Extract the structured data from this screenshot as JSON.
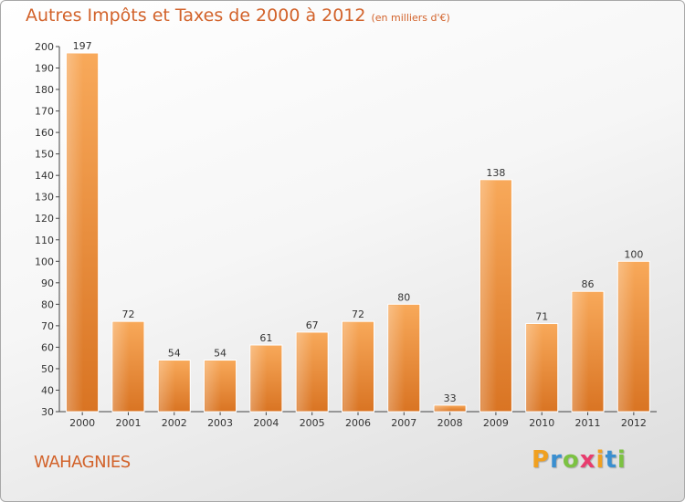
{
  "title": "Autres Impôts et Taxes de 2000 à 2012",
  "unit_note": "(en milliers d'€)",
  "commune": "WAHAGNIES",
  "logo": {
    "letters": [
      "P",
      "r",
      "o",
      "x",
      "i",
      "t",
      "i"
    ],
    "colors": [
      "#f0a020",
      "#3a8fd0",
      "#7cc242",
      "#e83c6e",
      "#f0a020",
      "#3a8fd0",
      "#7cc242"
    ]
  },
  "colors": {
    "accent": "#d2622a",
    "bar_light": "#f8a95a",
    "bar_dark": "#d97423"
  },
  "chart_data": {
    "type": "bar",
    "title": "Autres Impôts et Taxes de 2000 à 2012",
    "categories": [
      "2000",
      "2001",
      "2002",
      "2003",
      "2004",
      "2005",
      "2006",
      "2007",
      "2008",
      "2009",
      "2010",
      "2011",
      "2012"
    ],
    "values": [
      197,
      72,
      54,
      54,
      61,
      67,
      72,
      80,
      33,
      138,
      71,
      86,
      100
    ],
    "ylim": [
      30,
      200
    ],
    "yticks": [
      30,
      40,
      50,
      60,
      70,
      80,
      90,
      100,
      110,
      120,
      130,
      140,
      150,
      160,
      170,
      180,
      190,
      200
    ],
    "grid": false,
    "xlabel": "",
    "ylabel": ""
  }
}
